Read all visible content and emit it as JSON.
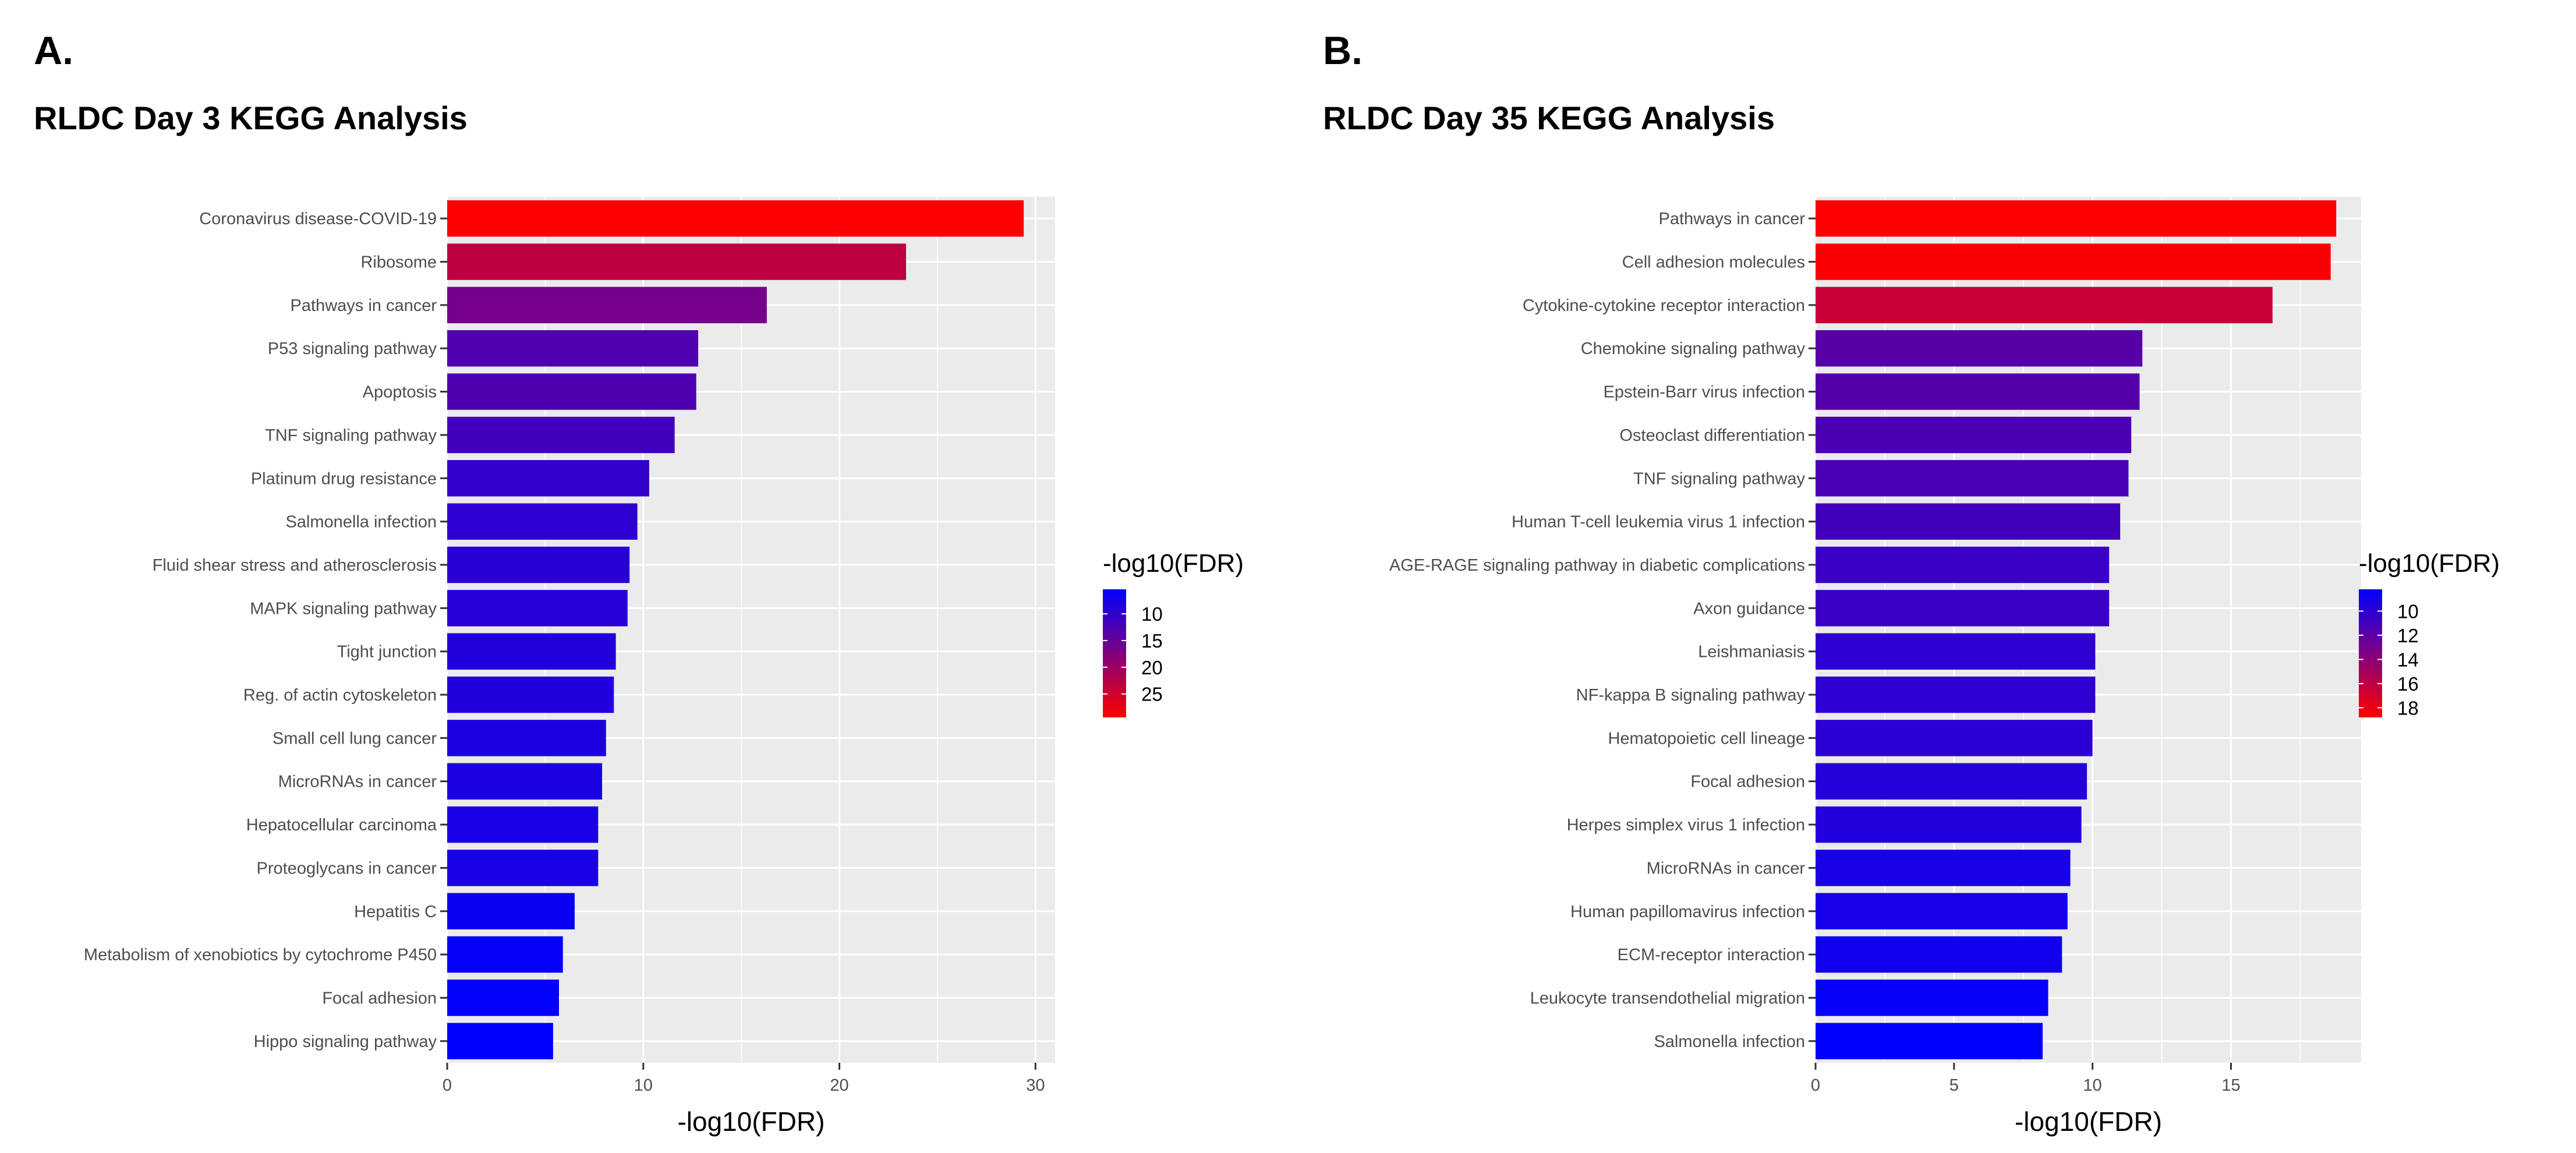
{
  "chart_data": [
    {
      "panel_label": "A.",
      "type": "bar",
      "orientation": "horizontal",
      "title": "RLDC Day 3 KEGG Analysis",
      "xlabel": "-log10(FDR)",
      "ylabel": "",
      "xlim": [
        0,
        31
      ],
      "xticks": [
        "0",
        "10",
        "20",
        "30"
      ],
      "grid": true,
      "categories": [
        "Coronavirus disease-COVID-19",
        "Ribosome",
        "Pathways in cancer",
        "P53 signaling pathway",
        "Apoptosis",
        "TNF signaling pathway",
        "Platinum drug resistance",
        "Salmonella infection",
        "Fluid shear stress and atherosclerosis",
        "MAPK signaling pathway",
        "Tight junction",
        "Reg. of actin cytoskeleton",
        "Small cell lung cancer",
        "MicroRNAs in cancer",
        "Hepatocellular carcinoma",
        "Proteoglycans in cancer",
        "Hepatitis C",
        "Metabolism of xenobiotics by cytochrome P450",
        "Focal adhesion",
        "Hippo signaling pathway"
      ],
      "values": [
        29.4,
        23.4,
        16.3,
        12.8,
        12.7,
        11.6,
        10.3,
        9.7,
        9.3,
        9.2,
        8.6,
        8.5,
        8.1,
        7.9,
        7.7,
        7.7,
        6.5,
        5.9,
        5.7,
        5.4
      ],
      "legend": {
        "title": "-log10(FDR)",
        "placement": "right",
        "range": [
          5.4,
          29.4
        ],
        "labels": [
          "10",
          "15",
          "20",
          "25"
        ],
        "low_color": "#0000ff",
        "high_color": "#ff0000"
      }
    },
    {
      "panel_label": "B.",
      "type": "bar",
      "orientation": "horizontal",
      "title": "RLDC Day 35 KEGG Analysis",
      "xlabel": "-log10(FDR)",
      "ylabel": "",
      "xlim": [
        0,
        19.7
      ],
      "xticks": [
        "0",
        "5",
        "10",
        "15"
      ],
      "grid": true,
      "categories": [
        "Pathways in cancer",
        "Cell adhesion molecules",
        "Cytokine-cytokine receptor interaction",
        "Chemokine signaling pathway",
        "Epstein-Barr virus infection",
        "Osteoclast differentiation",
        "TNF signaling pathway",
        "Human T-cell leukemia virus 1 infection",
        "AGE-RAGE signaling pathway in diabetic complications",
        "Axon guidance",
        "Leishmaniasis",
        "NF-kappa B signaling pathway",
        "Hematopoietic cell lineage",
        "Focal adhesion",
        "Herpes simplex virus 1 infection",
        "MicroRNAs in cancer",
        "Human papillomavirus infection",
        "ECM-receptor interaction",
        "Leukocyte transendothelial migration",
        "Salmonella infection"
      ],
      "values": [
        18.8,
        18.6,
        16.5,
        11.8,
        11.7,
        11.4,
        11.3,
        11.0,
        10.6,
        10.6,
        10.1,
        10.1,
        10.0,
        9.8,
        9.6,
        9.2,
        9.1,
        8.9,
        8.4,
        8.2
      ],
      "legend": {
        "title": "-log10(FDR)",
        "placement": "right",
        "range": [
          8.2,
          18.8
        ],
        "labels": [
          "10",
          "12",
          "14",
          "16",
          "18"
        ],
        "low_color": "#0000ff",
        "high_color": "#ff0000"
      }
    }
  ]
}
